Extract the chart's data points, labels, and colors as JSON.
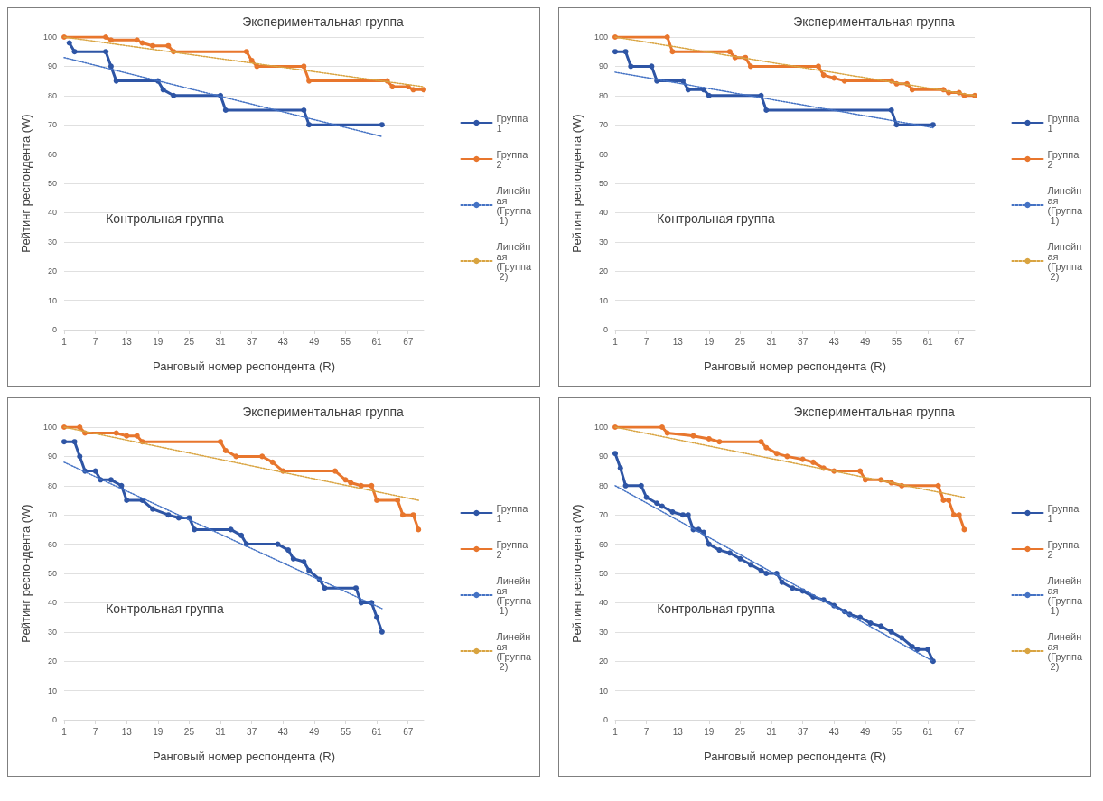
{
  "chart_data": [
    {
      "type": "line",
      "xlabel": "Ранговый номер респондента (R)",
      "ylabel": "Рейтинг респондента (W)",
      "xlim": [
        1,
        70
      ],
      "xticks": [
        1,
        7,
        13,
        19,
        25,
        31,
        37,
        43,
        49,
        55,
        61,
        67
      ],
      "ylim": [
        0,
        100
      ],
      "yticks": [
        0,
        10,
        20,
        30,
        40,
        50,
        60,
        70,
        80,
        90,
        100
      ],
      "grid": "y",
      "legend": "right",
      "annotations": [
        "Экспериментальная группа",
        "Контрольная группа"
      ],
      "series": [
        {
          "name": "Группа 1",
          "color": "#2e55a5",
          "marker": "circle",
          "line_style": "solid",
          "x": [
            2,
            3,
            9,
            10,
            11,
            19,
            20,
            22,
            31,
            32,
            47,
            48,
            62
          ],
          "values": [
            98,
            95,
            95,
            90,
            85,
            85,
            82,
            80,
            80,
            75,
            75,
            70,
            70
          ]
        },
        {
          "name": "Группа 2",
          "color": "#e8762d",
          "marker": "circle",
          "line_style": "solid",
          "x": [
            1,
            9,
            10,
            15,
            16,
            18,
            21,
            22,
            36,
            37,
            38,
            47,
            48,
            63,
            64,
            67,
            68,
            70
          ],
          "values": [
            100,
            100,
            99,
            99,
            98,
            97,
            97,
            95,
            95,
            92,
            90,
            90,
            85,
            85,
            83,
            83,
            82,
            82
          ]
        },
        {
          "name": "Линейная (Группа 1)",
          "color": "#4472c4",
          "marker": "none",
          "line_style": "dotted",
          "x": [
            1,
            62
          ],
          "values": [
            93,
            66
          ]
        },
        {
          "name": "Линейная (Группа 2)",
          "color": "#d9a441",
          "marker": "none",
          "line_style": "dotted",
          "x": [
            1,
            70
          ],
          "values": [
            100,
            83
          ]
        }
      ]
    },
    {
      "type": "line",
      "xlabel": "Ранговый номер респондента (R)",
      "ylabel": "Рейтинг респондента (W)",
      "xlim": [
        1,
        70
      ],
      "xticks": [
        1,
        7,
        13,
        19,
        25,
        31,
        37,
        43,
        49,
        55,
        61,
        67
      ],
      "ylim": [
        0,
        100
      ],
      "yticks": [
        0,
        10,
        20,
        30,
        40,
        50,
        60,
        70,
        80,
        90,
        100
      ],
      "grid": "y",
      "legend": "right",
      "annotations": [
        "Экспериментальная группа",
        "Контрольная группа"
      ],
      "series": [
        {
          "name": "Группа 1",
          "color": "#2e55a5",
          "marker": "circle",
          "line_style": "solid",
          "x": [
            1,
            3,
            4,
            8,
            9,
            14,
            15,
            18,
            19,
            29,
            30,
            54,
            55,
            62
          ],
          "values": [
            95,
            95,
            90,
            90,
            85,
            85,
            82,
            82,
            80,
            80,
            75,
            75,
            70,
            70
          ]
        },
        {
          "name": "Группа 2",
          "color": "#e8762d",
          "marker": "circle",
          "line_style": "solid",
          "x": [
            1,
            11,
            12,
            23,
            24,
            26,
            27,
            40,
            41,
            43,
            45,
            54,
            55,
            57,
            58,
            64,
            65,
            67,
            68,
            70
          ],
          "values": [
            100,
            100,
            95,
            95,
            93,
            93,
            90,
            90,
            87,
            86,
            85,
            85,
            84,
            84,
            82,
            82,
            81,
            81,
            80,
            80
          ]
        },
        {
          "name": "Линейная (Группа 1)",
          "color": "#4472c4",
          "marker": "none",
          "line_style": "dotted",
          "x": [
            1,
            62
          ],
          "values": [
            88,
            69
          ]
        },
        {
          "name": "Линейная (Группа 2)",
          "color": "#d9a441",
          "marker": "none",
          "line_style": "dotted",
          "x": [
            1,
            70
          ],
          "values": [
            100,
            80
          ]
        }
      ]
    },
    {
      "type": "line",
      "xlabel": "Ранговый номер респондента (R)",
      "ylabel": "Рейтинг респондента (W)",
      "xlim": [
        1,
        70
      ],
      "xticks": [
        1,
        7,
        13,
        19,
        25,
        31,
        37,
        43,
        49,
        55,
        61,
        67
      ],
      "ylim": [
        0,
        100
      ],
      "yticks": [
        0,
        10,
        20,
        30,
        40,
        50,
        60,
        70,
        80,
        90,
        100
      ],
      "grid": "y",
      "legend": "right",
      "annotations": [
        "Экспериментальная группа",
        "Контрольная группа"
      ],
      "series": [
        {
          "name": "Группа 1",
          "color": "#2e55a5",
          "marker": "circle",
          "line_style": "solid",
          "x": [
            1,
            3,
            4,
            5,
            7,
            8,
            10,
            12,
            13,
            16,
            18,
            21,
            23,
            25,
            26,
            33,
            35,
            36,
            42,
            44,
            45,
            47,
            48,
            50,
            51,
            57,
            58,
            60,
            61,
            62
          ],
          "values": [
            95,
            95,
            90,
            85,
            85,
            82,
            82,
            80,
            75,
            75,
            72,
            70,
            69,
            69,
            65,
            65,
            63,
            60,
            60,
            58,
            55,
            54,
            51,
            48,
            45,
            45,
            40,
            40,
            35,
            30
          ]
        },
        {
          "name": "Группа 2",
          "color": "#e8762d",
          "marker": "circle",
          "line_style": "solid",
          "x": [
            1,
            4,
            5,
            11,
            13,
            15,
            16,
            31,
            32,
            34,
            39,
            41,
            43,
            53,
            55,
            56,
            58,
            60,
            61,
            65,
            66,
            68,
            69
          ],
          "values": [
            100,
            100,
            98,
            98,
            97,
            97,
            95,
            95,
            92,
            90,
            90,
            88,
            85,
            85,
            82,
            81,
            80,
            80,
            75,
            75,
            70,
            70,
            65
          ]
        },
        {
          "name": "Линейная (Группа 1)",
          "color": "#4472c4",
          "marker": "none",
          "line_style": "dotted",
          "x": [
            1,
            62
          ],
          "values": [
            88,
            38
          ]
        },
        {
          "name": "Линейная (Группа 2)",
          "color": "#d9a441",
          "marker": "none",
          "line_style": "dotted",
          "x": [
            1,
            69
          ],
          "values": [
            100,
            75
          ]
        }
      ]
    },
    {
      "type": "line",
      "xlabel": "Ранговый номер респондента (R)",
      "ylabel": "Рейтинг респондента (W)",
      "xlim": [
        1,
        70
      ],
      "xticks": [
        1,
        7,
        13,
        19,
        25,
        31,
        37,
        43,
        49,
        55,
        61,
        67
      ],
      "ylim": [
        0,
        100
      ],
      "yticks": [
        0,
        10,
        20,
        30,
        40,
        50,
        60,
        70,
        80,
        90,
        100
      ],
      "grid": "y",
      "legend": "right",
      "annotations": [
        "Экспериментальная группа",
        "Контрольная группа"
      ],
      "series": [
        {
          "name": "Группа 1",
          "color": "#2e55a5",
          "marker": "circle",
          "line_style": "solid",
          "x": [
            1,
            2,
            3,
            6,
            7,
            9,
            10,
            12,
            14,
            15,
            16,
            17,
            18,
            19,
            21,
            23,
            25,
            27,
            29,
            30,
            32,
            33,
            35,
            37,
            39,
            41,
            43,
            45,
            46,
            48,
            50,
            52,
            54,
            56,
            58,
            59,
            61,
            62
          ],
          "values": [
            91,
            86,
            80,
            80,
            76,
            74,
            73,
            71,
            70,
            70,
            65,
            65,
            64,
            60,
            58,
            57,
            55,
            53,
            51,
            50,
            50,
            47,
            45,
            44,
            42,
            41,
            39,
            37,
            36,
            35,
            33,
            32,
            30,
            28,
            25,
            24,
            24,
            20
          ]
        },
        {
          "name": "Группа 2",
          "color": "#e8762d",
          "marker": "circle",
          "line_style": "solid",
          "x": [
            1,
            10,
            11,
            16,
            19,
            21,
            29,
            30,
            32,
            34,
            37,
            39,
            41,
            43,
            48,
            49,
            52,
            54,
            56,
            63,
            64,
            65,
            66,
            67,
            68
          ],
          "values": [
            100,
            100,
            98,
            97,
            96,
            95,
            95,
            93,
            91,
            90,
            89,
            88,
            86,
            85,
            85,
            82,
            82,
            81,
            80,
            80,
            75,
            75,
            70,
            70,
            65
          ]
        },
        {
          "name": "Линейная (Группа 1)",
          "color": "#4472c4",
          "marker": "none",
          "line_style": "dotted",
          "x": [
            1,
            62
          ],
          "values": [
            80,
            20
          ]
        },
        {
          "name": "Линейная (Группа 2)",
          "color": "#d9a441",
          "marker": "none",
          "line_style": "dotted",
          "x": [
            1,
            68
          ],
          "values": [
            100,
            76
          ]
        }
      ]
    }
  ]
}
